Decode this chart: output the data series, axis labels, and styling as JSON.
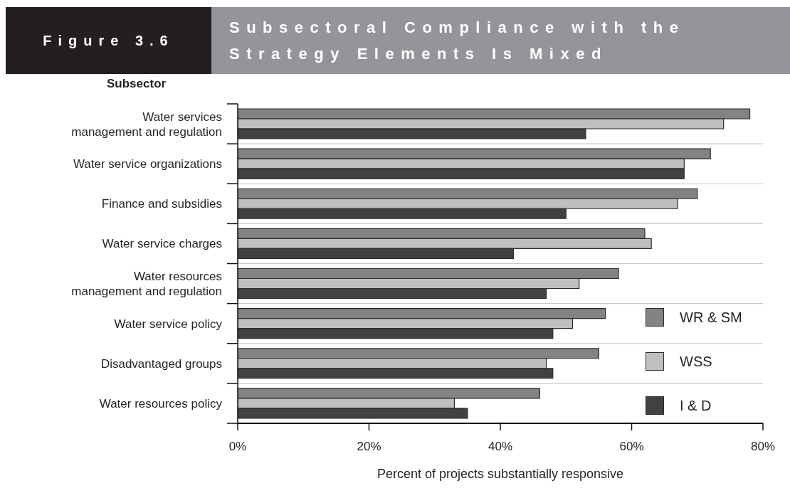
{
  "chart_data": {
    "type": "bar",
    "orientation": "horizontal",
    "title": "Subsectoral Compliance with the Strategy Elements Is Mixed",
    "ylabel": "Subsector",
    "xlabel": "Percent of projects substantially responsive",
    "annotations": [
      "Figure 3.6"
    ],
    "categories": [
      "Water services management and regulation",
      "Water service organizations",
      "Finance and subsidies",
      "Water service charges",
      "Water resources management and regulation",
      "Water service policy",
      "Disadvantaged groups",
      "Water resources policy"
    ],
    "series": [
      {
        "name": "WR & SM",
        "color": "#838383",
        "values": [
          78,
          72,
          70,
          62,
          58,
          56,
          55,
          46
        ]
      },
      {
        "name": "WSS",
        "color": "#bfbfbf",
        "values": [
          74,
          68,
          67,
          63,
          52,
          51,
          47,
          33
        ]
      },
      {
        "name": "I & D",
        "color": "#424242",
        "values": [
          53,
          68,
          50,
          42,
          47,
          48,
          48,
          35
        ]
      }
    ],
    "xlim": [
      0,
      80
    ],
    "xticks": [
      {
        "value": 0,
        "label": "0%"
      },
      {
        "value": 20,
        "label": "20%"
      },
      {
        "value": 40,
        "label": "40%"
      },
      {
        "value": 60,
        "label": "60%"
      },
      {
        "value": 80,
        "label": "80%"
      }
    ],
    "grid": "y",
    "legend": "bottom right"
  }
}
